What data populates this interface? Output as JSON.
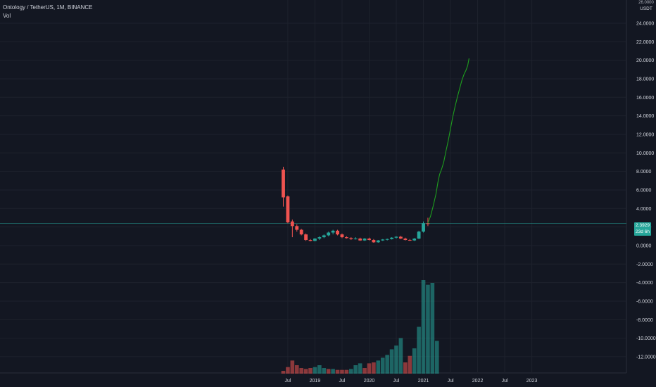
{
  "legend": {
    "symbol": "Ontology / TetherUS, 1M, BINANCE",
    "volume": "Vol"
  },
  "price_scale": {
    "top_label": "26.0000",
    "unit_top": "USD",
    "unit_bottom": "USDT"
  },
  "last_price": {
    "value": "2.3929",
    "countdown": "23d 6h"
  },
  "colors": {
    "background": "#131722",
    "grid": "#1e222d",
    "up": "#26a69a",
    "down": "#ef5350",
    "projection": "#1e9e1e"
  },
  "chart_data": {
    "type": "candlestick",
    "y_ticks": [
      24,
      22,
      20,
      18,
      16,
      14,
      12,
      10,
      8,
      6,
      4,
      2,
      0,
      -2,
      -4,
      -6,
      -8,
      -10,
      -12
    ],
    "y_tick_labels": [
      "24.0000",
      "22.0000",
      "20.0000",
      "18.0000",
      "16.0000",
      "14.0000",
      "12.0000",
      "10.0000",
      "8.0000",
      "6.0000",
      "4.0000",
      "2.0000",
      "0.0000",
      "-2.0000",
      "-4.0000",
      "-6.0000",
      "-8.0000",
      "-10.0000",
      "-12.0000"
    ],
    "ylim": [
      -13.6,
      26.2
    ],
    "x_tick_labels": [
      "Jul",
      "2019",
      "Jul",
      "2020",
      "Jul",
      "2021",
      "Jul",
      "2022",
      "Jul",
      "2023"
    ],
    "x_tick_months": [
      6,
      12,
      18,
      24,
      30,
      36,
      42,
      48,
      54,
      60
    ],
    "candles": [
      {
        "m": 5,
        "o": 8.2,
        "h": 8.5,
        "l": 4.2,
        "c": 5.2
      },
      {
        "m": 6,
        "o": 5.3,
        "h": 5.4,
        "l": 2.4,
        "c": 2.5
      },
      {
        "m": 7,
        "o": 2.6,
        "h": 2.8,
        "l": 0.9,
        "c": 2.1
      },
      {
        "m": 8,
        "o": 2.1,
        "h": 2.3,
        "l": 1.5,
        "c": 1.7
      },
      {
        "m": 9,
        "o": 1.7,
        "h": 1.8,
        "l": 1.1,
        "c": 1.2
      },
      {
        "m": 10,
        "o": 1.2,
        "h": 1.3,
        "l": 0.5,
        "c": 0.6
      },
      {
        "m": 11,
        "o": 0.6,
        "h": 0.7,
        "l": 0.45,
        "c": 0.5
      },
      {
        "m": 12,
        "o": 0.5,
        "h": 0.8,
        "l": 0.45,
        "c": 0.75
      },
      {
        "m": 13,
        "o": 0.75,
        "h": 1.0,
        "l": 0.6,
        "c": 0.9
      },
      {
        "m": 14,
        "o": 0.9,
        "h": 1.2,
        "l": 0.8,
        "c": 1.1
      },
      {
        "m": 15,
        "o": 1.1,
        "h": 1.5,
        "l": 1.0,
        "c": 1.4
      },
      {
        "m": 16,
        "o": 1.4,
        "h": 1.7,
        "l": 1.2,
        "c": 1.6
      },
      {
        "m": 17,
        "o": 1.6,
        "h": 1.7,
        "l": 1.1,
        "c": 1.2
      },
      {
        "m": 18,
        "o": 1.2,
        "h": 1.3,
        "l": 0.8,
        "c": 0.9
      },
      {
        "m": 19,
        "o": 0.9,
        "h": 1.0,
        "l": 0.75,
        "c": 0.8
      },
      {
        "m": 20,
        "o": 0.8,
        "h": 0.9,
        "l": 0.6,
        "c": 0.7
      },
      {
        "m": 21,
        "o": 0.7,
        "h": 0.9,
        "l": 0.65,
        "c": 0.75
      },
      {
        "m": 22,
        "o": 0.75,
        "h": 0.85,
        "l": 0.5,
        "c": 0.55
      },
      {
        "m": 23,
        "o": 0.55,
        "h": 0.8,
        "l": 0.5,
        "c": 0.75
      },
      {
        "m": 24,
        "o": 0.75,
        "h": 0.85,
        "l": 0.55,
        "c": 0.6
      },
      {
        "m": 25,
        "o": 0.6,
        "h": 0.7,
        "l": 0.3,
        "c": 0.35
      },
      {
        "m": 26,
        "o": 0.35,
        "h": 0.6,
        "l": 0.3,
        "c": 0.55
      },
      {
        "m": 27,
        "o": 0.55,
        "h": 0.7,
        "l": 0.5,
        "c": 0.65
      },
      {
        "m": 28,
        "o": 0.65,
        "h": 0.75,
        "l": 0.55,
        "c": 0.7
      },
      {
        "m": 29,
        "o": 0.7,
        "h": 0.9,
        "l": 0.65,
        "c": 0.85
      },
      {
        "m": 30,
        "o": 0.85,
        "h": 1.0,
        "l": 0.75,
        "c": 0.95
      },
      {
        "m": 31,
        "o": 0.95,
        "h": 1.05,
        "l": 0.7,
        "c": 0.75
      },
      {
        "m": 32,
        "o": 0.75,
        "h": 0.85,
        "l": 0.55,
        "c": 0.6
      },
      {
        "m": 33,
        "o": 0.6,
        "h": 0.7,
        "l": 0.5,
        "c": 0.55
      },
      {
        "m": 34,
        "o": 0.55,
        "h": 0.8,
        "l": 0.5,
        "c": 0.75
      },
      {
        "m": 35,
        "o": 0.75,
        "h": 1.6,
        "l": 0.7,
        "c": 1.5
      },
      {
        "m": 36,
        "o": 1.5,
        "h": 2.6,
        "l": 1.4,
        "c": 2.4
      },
      {
        "m": 37,
        "o": 2.4,
        "h": 3.0,
        "l": 2.1,
        "c": 2.39
      }
    ],
    "volume": {
      "ylim": [
        0,
        100
      ],
      "bars": [
        {
          "m": 5,
          "v": 3,
          "up": false
        },
        {
          "m": 6,
          "v": 7,
          "up": false
        },
        {
          "m": 7,
          "v": 14,
          "up": false
        },
        {
          "m": 8,
          "v": 9,
          "up": false
        },
        {
          "m": 9,
          "v": 6,
          "up": false
        },
        {
          "m": 10,
          "v": 5,
          "up": false
        },
        {
          "m": 11,
          "v": 6,
          "up": false
        },
        {
          "m": 12,
          "v": 7,
          "up": true
        },
        {
          "m": 13,
          "v": 9,
          "up": true
        },
        {
          "m": 14,
          "v": 6,
          "up": true
        },
        {
          "m": 15,
          "v": 5,
          "up": false
        },
        {
          "m": 16,
          "v": 5,
          "up": true
        },
        {
          "m": 17,
          "v": 4,
          "up": false
        },
        {
          "m": 18,
          "v": 4,
          "up": false
        },
        {
          "m": 19,
          "v": 4,
          "up": false
        },
        {
          "m": 20,
          "v": 5,
          "up": true
        },
        {
          "m": 21,
          "v": 9,
          "up": true
        },
        {
          "m": 22,
          "v": 11,
          "up": true
        },
        {
          "m": 23,
          "v": 6,
          "up": false
        },
        {
          "m": 24,
          "v": 11,
          "up": false
        },
        {
          "m": 25,
          "v": 12,
          "up": false
        },
        {
          "m": 26,
          "v": 14,
          "up": true
        },
        {
          "m": 27,
          "v": 17,
          "up": true
        },
        {
          "m": 28,
          "v": 20,
          "up": true
        },
        {
          "m": 29,
          "v": 26,
          "up": true
        },
        {
          "m": 30,
          "v": 30,
          "up": true
        },
        {
          "m": 31,
          "v": 38,
          "up": true
        },
        {
          "m": 32,
          "v": 12,
          "up": false
        },
        {
          "m": 33,
          "v": 19,
          "up": false
        },
        {
          "m": 34,
          "v": 27,
          "up": true
        },
        {
          "m": 35,
          "v": 50,
          "up": true
        },
        {
          "m": 36,
          "v": 100,
          "up": true
        },
        {
          "m": 37,
          "v": 95,
          "up": true
        },
        {
          "m": 38,
          "v": 97,
          "up": true
        },
        {
          "m": 39,
          "v": 35,
          "up": true
        }
      ]
    },
    "projection": [
      {
        "m": 37,
        "y": 2.4
      },
      {
        "m": 37.6,
        "y": 3.2
      },
      {
        "m": 38.2,
        "y": 4.3
      },
      {
        "m": 38.8,
        "y": 5.6
      },
      {
        "m": 39.2,
        "y": 6.8
      },
      {
        "m": 39.6,
        "y": 7.7
      },
      {
        "m": 40.0,
        "y": 8.2
      },
      {
        "m": 40.5,
        "y": 9.0
      },
      {
        "m": 41.0,
        "y": 10.2
      },
      {
        "m": 41.5,
        "y": 11.3
      },
      {
        "m": 42.0,
        "y": 12.6
      },
      {
        "m": 42.5,
        "y": 13.9
      },
      {
        "m": 43.0,
        "y": 15.0
      },
      {
        "m": 43.5,
        "y": 16.0
      },
      {
        "m": 44.0,
        "y": 16.9
      },
      {
        "m": 44.5,
        "y": 17.8
      },
      {
        "m": 45.0,
        "y": 18.5
      },
      {
        "m": 45.4,
        "y": 18.9
      },
      {
        "m": 45.8,
        "y": 19.4
      },
      {
        "m": 46.1,
        "y": 20.2
      }
    ]
  }
}
